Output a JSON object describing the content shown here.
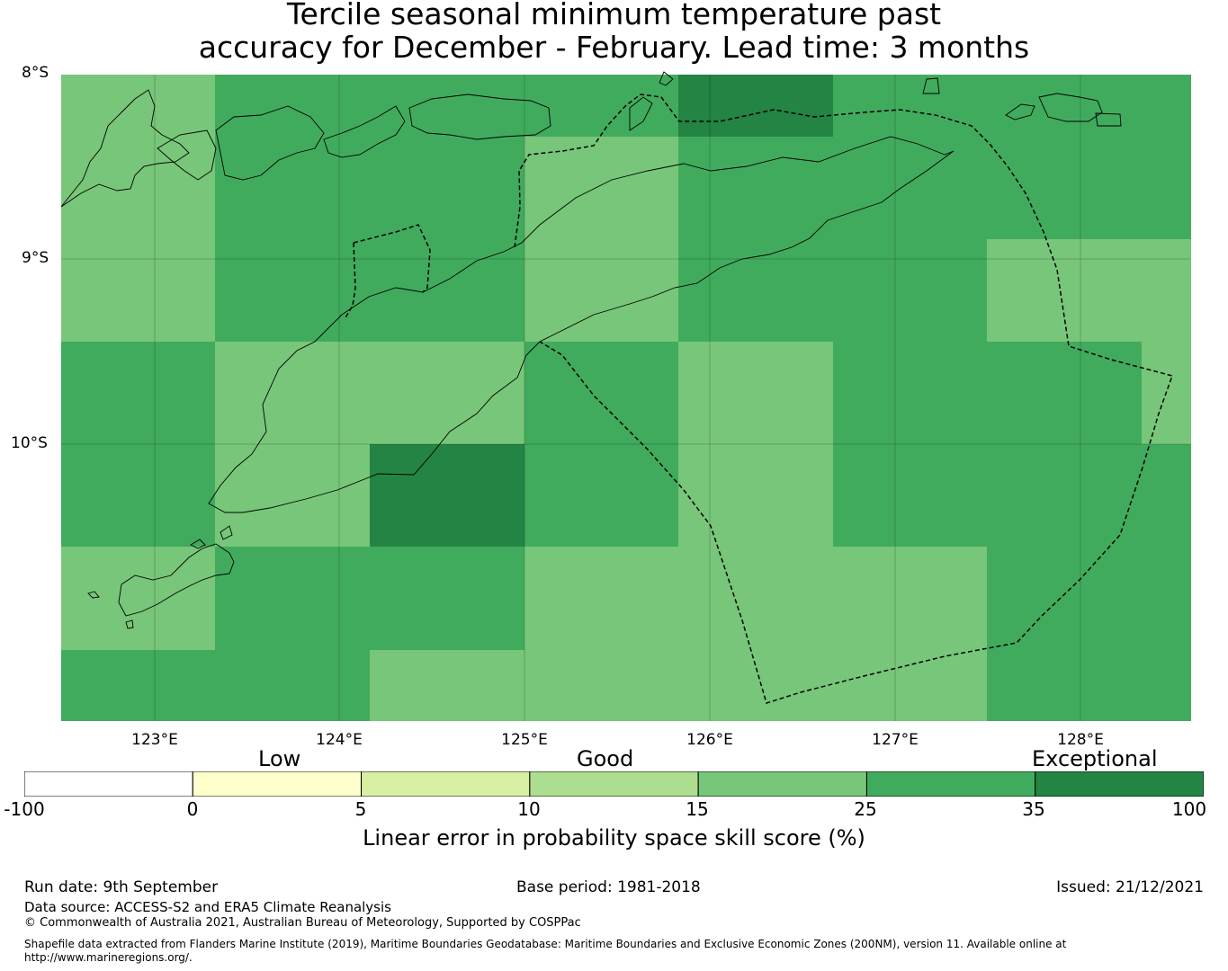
{
  "title": {
    "line1": "Tercile seasonal minimum temperature past",
    "line2": "accuracy for December - February. Lead time: 3 months"
  },
  "map": {
    "lon_labels": [
      "123°E",
      "124°E",
      "125°E",
      "126°E",
      "127°E",
      "128°E"
    ],
    "lat_labels": [
      "8°S",
      "9°S",
      "10°S"
    ],
    "grid_cells_skill": [
      [
        20,
        30,
        30,
        30,
        40,
        30,
        30,
        30
      ],
      [
        20,
        30,
        30,
        20,
        30,
        30,
        30,
        30
      ],
      [
        20,
        30,
        30,
        20,
        30,
        30,
        20,
        20
      ],
      [
        30,
        20,
        20,
        30,
        20,
        30,
        30,
        20
      ],
      [
        30,
        20,
        40,
        30,
        20,
        30,
        30,
        30
      ],
      [
        20,
        30,
        30,
        20,
        20,
        20,
        30,
        30
      ],
      [
        30,
        30,
        20,
        20,
        20,
        20,
        30,
        30
      ]
    ]
  },
  "legend": {
    "categories": [
      "Low",
      "Good",
      "Exceptional"
    ],
    "ticks": [
      "-100",
      "0",
      "5",
      "10",
      "15",
      "25",
      "35",
      "100"
    ],
    "colors": [
      "#ffffff",
      "#ffffcc",
      "#d9f0a3",
      "#addd8e",
      "#78c679",
      "#41ab5d",
      "#238443"
    ],
    "label": "Linear error in probability space skill score (%)"
  },
  "footer": {
    "run_date": "Run date: 9th September",
    "base_period": "Base period: 1981-2018",
    "issued": "Issued: 21/12/2021",
    "data_source": "Data source: ACCESS-S2 and ERA5 Climate Reanalysis",
    "copyright": "© Commonwealth of Australia 2021, Australian Bureau of Meteorology, Supported by COSPPac",
    "shapefile_line1": "Shapefile data extracted from Flanders Marine Institute (2019), Maritime Boundaries Geodatabase: Maritime Boundaries and Exclusive Economic Zones (200NM), version 11. Available online at",
    "shapefile_line2": "http://www.marineregions.org/."
  }
}
